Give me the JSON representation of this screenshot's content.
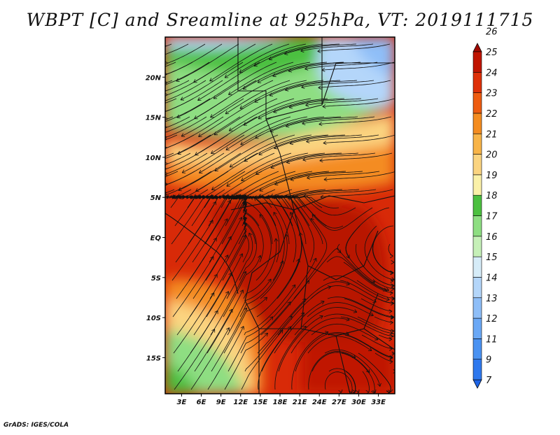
{
  "title": "WBPT [C] and Sreamline at 925hPa, VT: 2019111715",
  "credit": "GrADS: IGES/COLA",
  "axes": {
    "lat_labels": [
      "20N",
      "15N",
      "10N",
      "5N",
      "EQ",
      "5S",
      "10S",
      "15S"
    ],
    "lat_values": [
      20,
      15,
      10,
      5,
      0,
      -5,
      -10,
      -15
    ],
    "lon_labels": [
      "3E",
      "6E",
      "9E",
      "12E",
      "15E",
      "18E",
      "21E",
      "24E",
      "27E",
      "30E",
      "33E"
    ],
    "lon_values": [
      3,
      6,
      9,
      12,
      15,
      18,
      21,
      24,
      27,
      30,
      33
    ],
    "lon_range": [
      0.5,
      35.5
    ],
    "lat_range": [
      -19.5,
      25
    ]
  },
  "colorbar": {
    "levels": [
      "7",
      "9",
      "11",
      "12",
      "13",
      "14",
      "15",
      "16",
      "17",
      "18",
      "19",
      "20",
      "21",
      "22",
      "23",
      "24",
      "25",
      "26"
    ],
    "colors": [
      "#1e64e6",
      "#2e78ee",
      "#4a92f2",
      "#6aa8f6",
      "#8ebef8",
      "#b4d6fa",
      "#d6ecf8",
      "#c6f0b8",
      "#8ede82",
      "#4cc040",
      "#fbf1a8",
      "#fbd480",
      "#f8b448",
      "#f48c20",
      "#ee5c10",
      "#de3008",
      "#c01400",
      "#a00a00"
    ]
  },
  "field_legend": {
    "cold_north": "#b4d6fa",
    "green_north": "#8ede82",
    "warm_band": "#fbd480",
    "hot_core": "#c01400",
    "southwest_green": "#8ede82"
  }
}
